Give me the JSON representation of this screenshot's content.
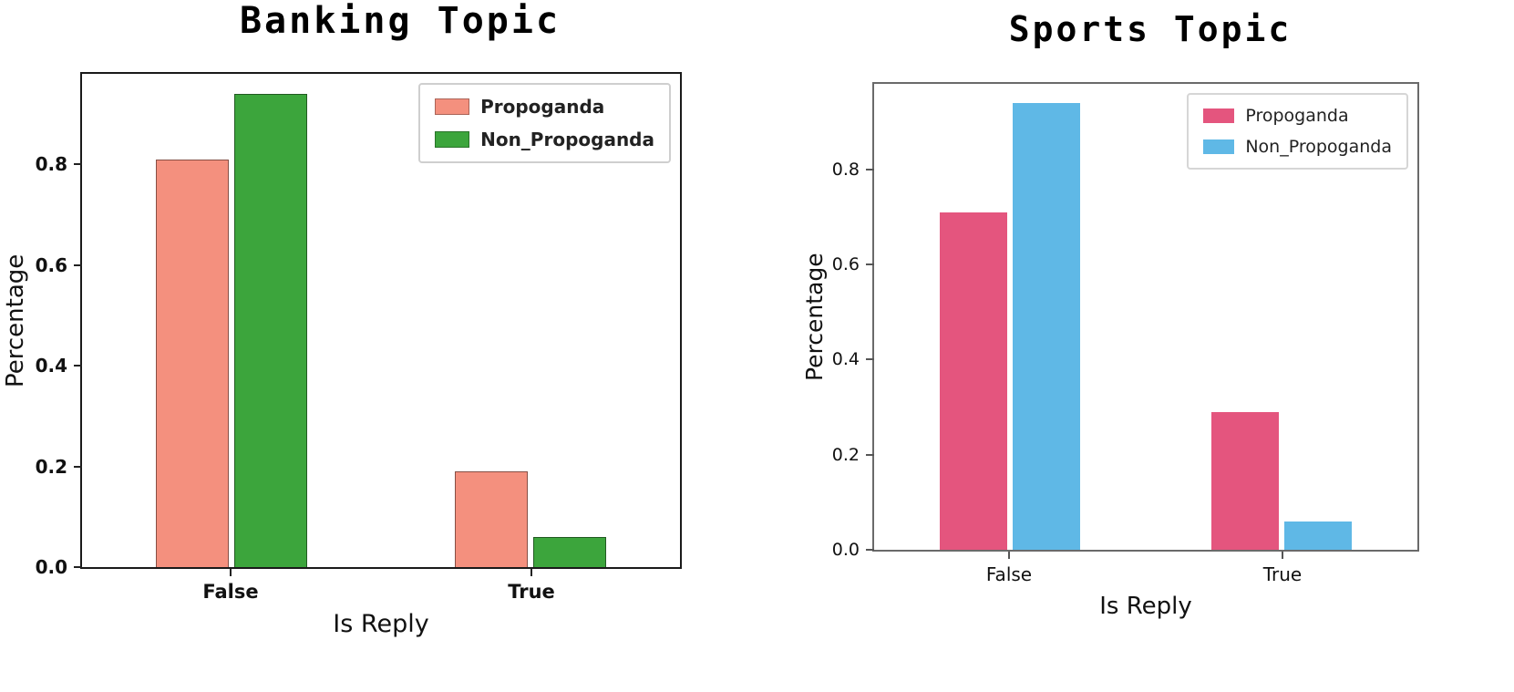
{
  "chart_data": [
    {
      "type": "bar",
      "title": "Banking Topic",
      "xlabel": "Is Reply",
      "ylabel": "Percentage",
      "categories": [
        "False",
        "True"
      ],
      "series": [
        {
          "name": "Propoganda",
          "color": "#f4907e",
          "values": [
            0.81,
            0.19
          ]
        },
        {
          "name": "Non_Propoganda",
          "color": "#3ca53c",
          "values": [
            0.94,
            0.06
          ]
        }
      ],
      "yticks": [
        0.0,
        0.2,
        0.4,
        0.6,
        0.8
      ],
      "ylim": [
        0,
        0.98
      ],
      "grid": false,
      "legend_position": "upper right"
    },
    {
      "type": "bar",
      "title": "Sports Topic",
      "xlabel": "Is Reply",
      "ylabel": "Percentage",
      "categories": [
        "False",
        "True"
      ],
      "series": [
        {
          "name": "Propoganda",
          "color": "#e4557e",
          "values": [
            0.71,
            0.29
          ]
        },
        {
          "name": "Non_Propoganda",
          "color": "#5fb8e6",
          "values": [
            0.94,
            0.06
          ]
        }
      ],
      "yticks": [
        0.0,
        0.2,
        0.4,
        0.6,
        0.8
      ],
      "ylim": [
        0,
        0.98
      ],
      "grid": false,
      "legend_position": "upper right"
    }
  ]
}
